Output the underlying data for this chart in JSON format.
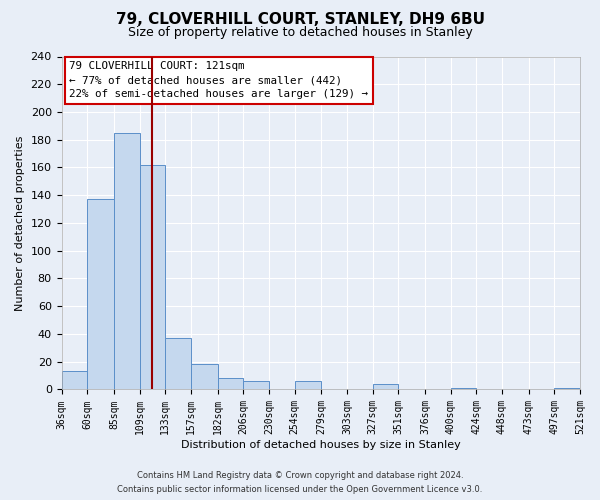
{
  "title": "79, CLOVERHILL COURT, STANLEY, DH9 6BU",
  "subtitle": "Size of property relative to detached houses in Stanley",
  "xlabel": "Distribution of detached houses by size in Stanley",
  "ylabel": "Number of detached properties",
  "bin_edges": [
    36,
    60,
    85,
    109,
    133,
    157,
    182,
    206,
    230,
    254,
    279,
    303,
    327,
    351,
    376,
    400,
    424,
    448,
    473,
    497,
    521
  ],
  "bar_heights": [
    13,
    137,
    185,
    162,
    37,
    18,
    8,
    6,
    0,
    6,
    0,
    0,
    4,
    0,
    0,
    1,
    0,
    0,
    0,
    1
  ],
  "bar_color": "#c5d8ee",
  "bar_edge_color": "#5b8fc9",
  "property_line_x": 121,
  "property_line_color": "#990000",
  "annotation_title": "79 CLOVERHILL COURT: 121sqm",
  "annotation_line1": "← 77% of detached houses are smaller (442)",
  "annotation_line2": "22% of semi-detached houses are larger (129) →",
  "annotation_box_facecolor": "#ffffff",
  "annotation_box_edgecolor": "#cc0000",
  "ylim": [
    0,
    240
  ],
  "yticks": [
    0,
    20,
    40,
    60,
    80,
    100,
    120,
    140,
    160,
    180,
    200,
    220,
    240
  ],
  "tick_labels": [
    "36sqm",
    "60sqm",
    "85sqm",
    "109sqm",
    "133sqm",
    "157sqm",
    "182sqm",
    "206sqm",
    "230sqm",
    "254sqm",
    "279sqm",
    "303sqm",
    "327sqm",
    "351sqm",
    "376sqm",
    "400sqm",
    "424sqm",
    "448sqm",
    "473sqm",
    "497sqm",
    "521sqm"
  ],
  "footer1": "Contains HM Land Registry data © Crown copyright and database right 2024.",
  "footer2": "Contains public sector information licensed under the Open Government Licence v3.0.",
  "background_color": "#e8eef7",
  "plot_bg_color": "#e8eef7",
  "grid_color": "#ffffff",
  "title_fontsize": 11,
  "subtitle_fontsize": 9,
  "ylabel_fontsize": 8,
  "xlabel_fontsize": 8,
  "ytick_fontsize": 8,
  "xtick_fontsize": 7,
  "footer_fontsize": 6
}
